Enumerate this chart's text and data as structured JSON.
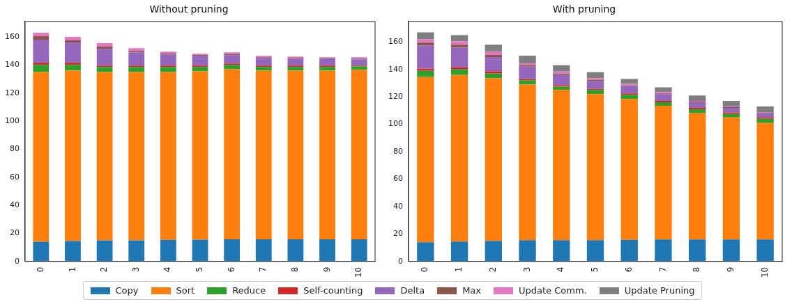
{
  "chart_data": [
    {
      "type": "bar",
      "title": "Without pruning",
      "stacked": true,
      "grid": false,
      "categories": [
        "0",
        "1",
        "2",
        "3",
        "4",
        "5",
        "6",
        "7",
        "8",
        "9",
        "10"
      ],
      "ylim": [
        0,
        171
      ],
      "yticks": [
        0,
        20,
        40,
        60,
        80,
        100,
        120,
        140,
        160
      ],
      "series": [
        {
          "color": "#1f77b4",
          "values": [
            14,
            14.5,
            15,
            15,
            15.3,
            15.5,
            15.7,
            15.7,
            15.7,
            15.7,
            15.7
          ]
        },
        {
          "color": "#ff7f0e",
          "values": [
            121,
            121.5,
            120,
            120,
            119.7,
            120,
            121.3,
            120.3,
            120.3,
            120.3,
            120.8
          ]
        },
        {
          "color": "#2ca02c",
          "values": [
            5,
            4,
            3.5,
            3.5,
            3.5,
            3,
            3,
            2.5,
            2.5,
            2.5,
            2.5
          ]
        },
        {
          "color": "#d62728",
          "values": [
            1.5,
            1.5,
            1,
            1,
            1,
            1,
            1,
            1,
            1,
            1,
            0.5
          ]
        },
        {
          "color": "#9467bd",
          "values": [
            16.5,
            14.5,
            12,
            9.5,
            8,
            7,
            6,
            5.5,
            5,
            5,
            4.5
          ]
        },
        {
          "color": "#8c564b",
          "values": [
            2.5,
            1.5,
            1.5,
            1,
            0.7,
            0.7,
            0.7,
            0.5,
            0.5,
            0.5,
            0.5
          ]
        },
        {
          "color": "#e377c2",
          "values": [
            2.5,
            2.5,
            2.5,
            2,
            1.3,
            0.8,
            1.3,
            1,
            1,
            0.5,
            1
          ]
        }
      ]
    },
    {
      "type": "bar",
      "title": "With pruning",
      "stacked": true,
      "legend": "bottom",
      "grid": false,
      "categories": [
        "0",
        "1",
        "2",
        "3",
        "4",
        "5",
        "6",
        "7",
        "8",
        "9",
        "10"
      ],
      "ylim": [
        0,
        175
      ],
      "yticks": [
        0,
        20,
        40,
        60,
        80,
        100,
        120,
        140,
        160
      ],
      "series": [
        {
          "name": "Copy",
          "color": "#1f77b4",
          "values": [
            14,
            14.5,
            15,
            15.5,
            15.5,
            15.5,
            15.7,
            16,
            16,
            16,
            16
          ]
        },
        {
          "name": "Sort",
          "color": "#ff7f0e",
          "values": [
            120.5,
            121.5,
            118.5,
            113.5,
            109.5,
            106.5,
            102.8,
            97.5,
            92,
            89,
            85
          ]
        },
        {
          "name": "Reduce",
          "color": "#2ca02c",
          "values": [
            4.5,
            4,
            3.5,
            3,
            2.5,
            3,
            3,
            2.5,
            3,
            2.5,
            3
          ]
        },
        {
          "name": "Self-counting",
          "color": "#d62728",
          "values": [
            1.5,
            1.5,
            1.5,
            1,
            1,
            1,
            1,
            1,
            1,
            1,
            1
          ]
        },
        {
          "name": "Delta",
          "color": "#9467bd",
          "values": [
            17,
            14.5,
            10.5,
            9,
            7.5,
            5.5,
            5.5,
            5,
            4,
            3.5,
            3
          ]
        },
        {
          "name": "Max",
          "color": "#8c564b",
          "values": [
            2,
            2,
            1.5,
            1,
            1,
            1,
            0.5,
            0.5,
            0.5,
            0.5,
            0.5
          ]
        },
        {
          "name": "Update Comm.",
          "color": "#e377c2",
          "values": [
            2.5,
            2.5,
            2.5,
            1.5,
            1.5,
            1,
            1,
            1,
            0.5,
            0.5,
            0.5
          ]
        },
        {
          "name": "Update Pruning",
          "color": "#7f7f7f",
          "values": [
            5,
            4.5,
            5,
            5.5,
            4.5,
            4.5,
            3.5,
            3.5,
            4,
            4,
            4
          ]
        }
      ]
    }
  ]
}
